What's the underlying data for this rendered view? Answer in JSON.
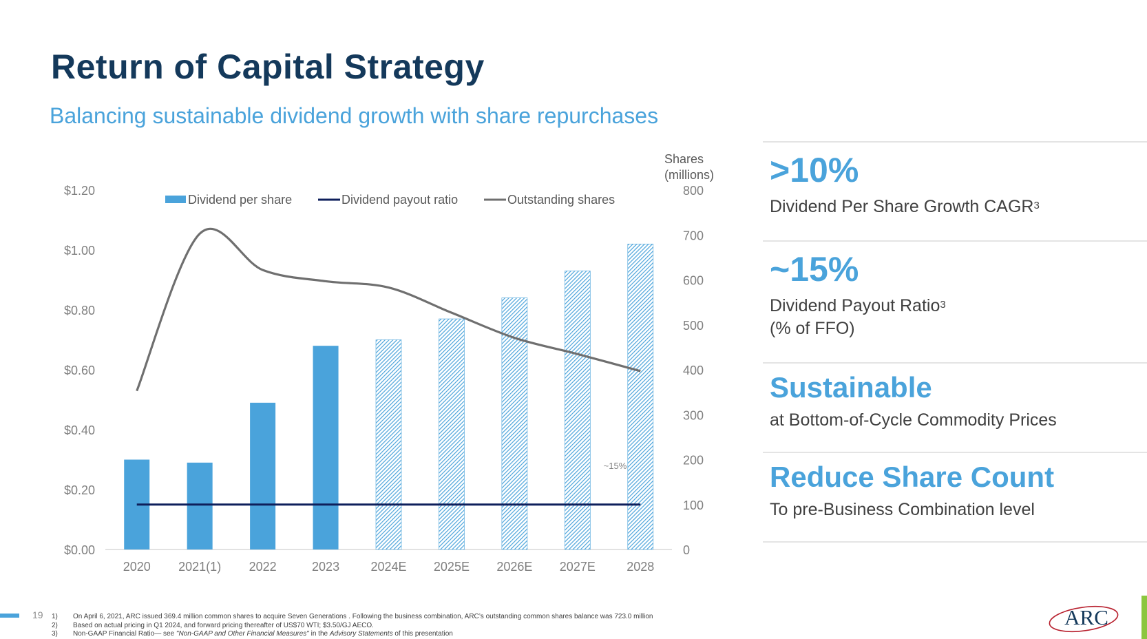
{
  "page": {
    "title": "Return of Capital Strategy",
    "subtitle": "Balancing sustainable dividend growth with share repurchases",
    "page_number": "19"
  },
  "stats": [
    {
      "big": ">10%",
      "desc": "Dividend Per Share Growth CAGR",
      "sup": "3"
    },
    {
      "big": "~15%",
      "desc": "Dividend Payout Ratio",
      "sup": "3",
      "desc2": "(% of FFO)"
    },
    {
      "big": "Sustainable",
      "desc": "at Bottom-of-Cycle Commodity Prices"
    },
    {
      "big": "Reduce Share Count",
      "desc": "To pre-Business Combination level"
    }
  ],
  "footnotes": [
    {
      "num": "1)",
      "text": "On April 6, 2021, ARC  issued 369.4 million common shares to acquire Seven Generations . Following the business combination, ARC’s outstanding common shares balance was 723.0 million"
    },
    {
      "num": "2)",
      "text": "Based on actual pricing in Q1 2024, and forward pricing thereafter of US$70 WTI; $3.50/GJ AECO."
    },
    {
      "num": "3)",
      "pre": "Non-GAAP Financial Ratio— see ",
      "em1": "\"Non-GAAP and Other Financial Measures\"",
      "mid": " in the ",
      "em2": "Advisory Statements",
      "post": " of this presentation"
    }
  ],
  "logo": {
    "text": "ARC"
  },
  "colors": {
    "accent": "#4aa3db",
    "navy": "#14395b",
    "payout_line": "#0e1f5b",
    "shares_line": "#6f6f6f",
    "green": "#8cc63f"
  },
  "chart_data": {
    "type": "bar",
    "categories": [
      "2020",
      "2021(1)",
      "2022",
      "2023",
      "2024E",
      "2025E",
      "2026E",
      "2027E",
      "2028"
    ],
    "legend": [
      "Dividend per share",
      "Dividend payout ratio",
      "Outstanding shares"
    ],
    "legend_position": "top",
    "y_left": {
      "ticks": [
        "$0.00",
        "$0.20",
        "$0.40",
        "$0.60",
        "$0.80",
        "$1.00",
        "$1.20"
      ],
      "range": [
        0,
        1.2
      ]
    },
    "y_right": {
      "label": [
        "Shares",
        "(millions)"
      ],
      "ticks": [
        "0",
        "100",
        "200",
        "300",
        "400",
        "500",
        "600",
        "700",
        "800"
      ],
      "range": [
        0,
        800
      ]
    },
    "series": [
      {
        "name": "Dividend per share",
        "type": "bar",
        "axis": "left",
        "values": [
          0.3,
          0.29,
          0.49,
          0.68,
          0.7,
          0.77,
          0.84,
          0.93,
          1.02
        ],
        "projected": [
          false,
          false,
          false,
          false,
          true,
          true,
          true,
          true,
          true
        ]
      },
      {
        "name": "Dividend payout ratio",
        "type": "line",
        "axis": "left",
        "values": [
          0.15,
          0.15,
          0.15,
          0.15,
          0.15,
          0.15,
          0.15,
          0.15,
          0.15
        ]
      },
      {
        "name": "Outstanding shares",
        "type": "line",
        "axis": "right",
        "smooth": true,
        "values": [
          353,
          703,
          622,
          597,
          583,
          527,
          471,
          435,
          397
        ]
      }
    ],
    "annotations": [
      {
        "text": "~15%",
        "category": "2028"
      }
    ],
    "grid": false
  }
}
